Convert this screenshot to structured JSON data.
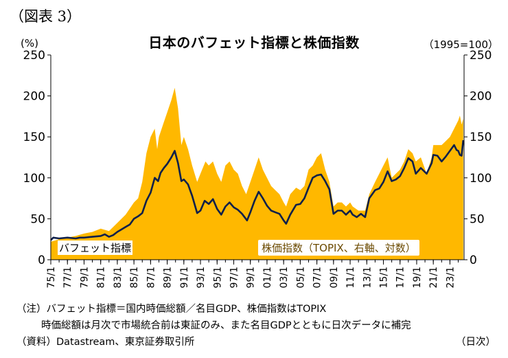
{
  "figure_label": "（図表 3）",
  "title": "日本のバフェット指標と株価指数",
  "left_unit": "(%)",
  "right_unit": "（1995=100）",
  "notes": [
    "（注）バフェット指標＝国内時価総額／名目GDP、株価指数はTOPIX",
    "時価総額は月次で市場統合前は東証のみ、また名目GDPとともに日次データに補完",
    "（資料）Datastream、東京証券取引所"
  ],
  "frequency_note": "（日次）",
  "colors": {
    "area": "#FFB800",
    "line": "#0D1F4A"
  },
  "chart_data": {
    "type": "area",
    "title": "日本のバフェット指標と株価指数",
    "y_left": {
      "label": "(%)",
      "range": [
        0,
        250
      ],
      "ticks": [
        0,
        50,
        100,
        150,
        200,
        250
      ]
    },
    "y_right": {
      "label": "（1995=100）",
      "range": [
        0,
        250
      ],
      "ticks": [
        0,
        50,
        100,
        150,
        200,
        250
      ]
    },
    "x_range": [
      1975.0,
      2024.7
    ],
    "x_tick_labels": [
      "75/1",
      "77/1",
      "79/1",
      "81/1",
      "83/1",
      "85/1",
      "87/1",
      "89/1",
      "91/1",
      "93/1",
      "95/1",
      "97/1",
      "99/1",
      "01/1",
      "03/1",
      "05/1",
      "07/1",
      "09/1",
      "11/1",
      "13/1",
      "15/1",
      "17/1",
      "19/1",
      "21/1",
      "23/1"
    ],
    "x_tick_years": [
      1975,
      1977,
      1979,
      1981,
      1983,
      1985,
      1987,
      1989,
      1991,
      1993,
      1995,
      1997,
      1999,
      2001,
      2003,
      2005,
      2007,
      2009,
      2011,
      2013,
      2015,
      2017,
      2019,
      2021,
      2023
    ],
    "series": [
      {
        "name": "株価指数（TOPIX、右軸、対数）",
        "kind": "area",
        "points": [
          [
            1975.0,
            22
          ],
          [
            1976.0,
            25
          ],
          [
            1977.0,
            27
          ],
          [
            1978.0,
            29
          ],
          [
            1979.0,
            32
          ],
          [
            1980.0,
            34
          ],
          [
            1981.0,
            38
          ],
          [
            1982.0,
            35
          ],
          [
            1983.0,
            45
          ],
          [
            1984.0,
            55
          ],
          [
            1985.0,
            70
          ],
          [
            1985.5,
            75
          ],
          [
            1986.0,
            95
          ],
          [
            1986.5,
            130
          ],
          [
            1987.0,
            150
          ],
          [
            1987.5,
            160
          ],
          [
            1987.8,
            135
          ],
          [
            1988.0,
            150
          ],
          [
            1988.5,
            165
          ],
          [
            1989.0,
            180
          ],
          [
            1989.5,
            195
          ],
          [
            1989.9,
            210
          ],
          [
            1990.3,
            185
          ],
          [
            1990.7,
            140
          ],
          [
            1991.0,
            150
          ],
          [
            1991.5,
            135
          ],
          [
            1992.0,
            115
          ],
          [
            1992.6,
            95
          ],
          [
            1993.0,
            105
          ],
          [
            1993.6,
            120
          ],
          [
            1994.0,
            115
          ],
          [
            1994.5,
            120
          ],
          [
            1995.0,
            105
          ],
          [
            1995.5,
            95
          ],
          [
            1996.0,
            115
          ],
          [
            1996.5,
            120
          ],
          [
            1997.0,
            110
          ],
          [
            1997.5,
            105
          ],
          [
            1998.0,
            90
          ],
          [
            1998.5,
            80
          ],
          [
            1999.0,
            95
          ],
          [
            1999.5,
            110
          ],
          [
            2000.0,
            125
          ],
          [
            2000.5,
            110
          ],
          [
            2001.0,
            100
          ],
          [
            2001.5,
            90
          ],
          [
            2002.0,
            85
          ],
          [
            2002.5,
            80
          ],
          [
            2003.0,
            70
          ],
          [
            2003.3,
            65
          ],
          [
            2003.8,
            80
          ],
          [
            2004.5,
            88
          ],
          [
            2005.0,
            85
          ],
          [
            2005.5,
            90
          ],
          [
            2006.0,
            110
          ],
          [
            2006.5,
            115
          ],
          [
            2007.0,
            125
          ],
          [
            2007.5,
            130
          ],
          [
            2008.0,
            110
          ],
          [
            2008.5,
            95
          ],
          [
            2009.0,
            65
          ],
          [
            2009.5,
            70
          ],
          [
            2010.0,
            70
          ],
          [
            2010.5,
            65
          ],
          [
            2011.0,
            70
          ],
          [
            2011.3,
            65
          ],
          [
            2012.0,
            60
          ],
          [
            2012.8,
            60
          ],
          [
            2013.3,
            80
          ],
          [
            2014.0,
            95
          ],
          [
            2015.0,
            115
          ],
          [
            2015.5,
            125
          ],
          [
            2016.0,
            100
          ],
          [
            2016.5,
            105
          ],
          [
            2017.0,
            110
          ],
          [
            2017.5,
            120
          ],
          [
            2018.0,
            135
          ],
          [
            2018.5,
            130
          ],
          [
            2018.9,
            120
          ],
          [
            2019.5,
            125
          ],
          [
            2020.2,
            105
          ],
          [
            2020.8,
            125
          ],
          [
            2021.0,
            140
          ],
          [
            2021.5,
            140
          ],
          [
            2022.0,
            140
          ],
          [
            2022.5,
            145
          ],
          [
            2023.0,
            150
          ],
          [
            2023.5,
            160
          ],
          [
            2024.0,
            170
          ],
          [
            2024.2,
            176
          ],
          [
            2024.4,
            165
          ],
          [
            2024.6,
            172
          ]
        ]
      },
      {
        "name": "バフェット指標",
        "kind": "line",
        "points": [
          [
            1975.0,
            24
          ],
          [
            1975.3,
            27
          ],
          [
            1976.0,
            26
          ],
          [
            1977.0,
            27
          ],
          [
            1978.0,
            26
          ],
          [
            1978.5,
            27
          ],
          [
            1979.0,
            27
          ],
          [
            1980.0,
            28
          ],
          [
            1981.0,
            29
          ],
          [
            1981.5,
            31
          ],
          [
            1982.0,
            28
          ],
          [
            1982.5,
            30
          ],
          [
            1983.0,
            34
          ],
          [
            1983.5,
            37
          ],
          [
            1984.0,
            40
          ],
          [
            1984.5,
            43
          ],
          [
            1985.0,
            50
          ],
          [
            1985.5,
            53
          ],
          [
            1986.0,
            57
          ],
          [
            1986.5,
            72
          ],
          [
            1987.0,
            82
          ],
          [
            1987.5,
            100
          ],
          [
            1987.9,
            96
          ],
          [
            1988.2,
            106
          ],
          [
            1988.6,
            112
          ],
          [
            1989.0,
            117
          ],
          [
            1989.5,
            125
          ],
          [
            1989.9,
            133
          ],
          [
            1990.3,
            118
          ],
          [
            1990.7,
            96
          ],
          [
            1991.0,
            98
          ],
          [
            1991.5,
            92
          ],
          [
            1992.0,
            78
          ],
          [
            1992.6,
            57
          ],
          [
            1993.0,
            60
          ],
          [
            1993.5,
            72
          ],
          [
            1994.0,
            68
          ],
          [
            1994.5,
            74
          ],
          [
            1995.0,
            62
          ],
          [
            1995.5,
            55
          ],
          [
            1996.0,
            65
          ],
          [
            1996.5,
            70
          ],
          [
            1997.0,
            64
          ],
          [
            1997.5,
            61
          ],
          [
            1998.0,
            56
          ],
          [
            1998.6,
            48
          ],
          [
            1999.0,
            58
          ],
          [
            1999.5,
            72
          ],
          [
            2000.0,
            83
          ],
          [
            2000.5,
            75
          ],
          [
            2001.0,
            66
          ],
          [
            2001.5,
            60
          ],
          [
            2002.0,
            58
          ],
          [
            2002.5,
            56
          ],
          [
            2003.0,
            48
          ],
          [
            2003.3,
            44
          ],
          [
            2003.8,
            55
          ],
          [
            2004.5,
            67
          ],
          [
            2005.0,
            68
          ],
          [
            2005.5,
            75
          ],
          [
            2006.0,
            88
          ],
          [
            2006.5,
            100
          ],
          [
            2007.0,
            103
          ],
          [
            2007.5,
            104
          ],
          [
            2008.0,
            96
          ],
          [
            2008.5,
            86
          ],
          [
            2009.0,
            56
          ],
          [
            2009.5,
            60
          ],
          [
            2010.0,
            60
          ],
          [
            2010.5,
            55
          ],
          [
            2011.0,
            60
          ],
          [
            2011.3,
            55
          ],
          [
            2011.8,
            52
          ],
          [
            2012.3,
            56
          ],
          [
            2012.8,
            52
          ],
          [
            2013.3,
            75
          ],
          [
            2014.0,
            85
          ],
          [
            2014.5,
            87
          ],
          [
            2015.0,
            95
          ],
          [
            2015.5,
            108
          ],
          [
            2016.0,
            96
          ],
          [
            2016.5,
            98
          ],
          [
            2017.0,
            102
          ],
          [
            2017.5,
            112
          ],
          [
            2018.0,
            124
          ],
          [
            2018.5,
            120
          ],
          [
            2018.9,
            105
          ],
          [
            2019.5,
            112
          ],
          [
            2020.2,
            105
          ],
          [
            2020.8,
            118
          ],
          [
            2021.0,
            128
          ],
          [
            2021.5,
            127
          ],
          [
            2022.0,
            120
          ],
          [
            2022.5,
            126
          ],
          [
            2023.0,
            133
          ],
          [
            2023.5,
            140
          ],
          [
            2023.8,
            134
          ],
          [
            2024.0,
            133
          ],
          [
            2024.2,
            128
          ],
          [
            2024.4,
            127
          ],
          [
            2024.6,
            146
          ]
        ]
      }
    ],
    "series_labels": {
      "line": "バフェット指標",
      "area": "株価指数（TOPIX、右軸、対数）"
    },
    "grid": false,
    "legend": "inline labels inside plot (bottom-left and bottom-center)"
  }
}
